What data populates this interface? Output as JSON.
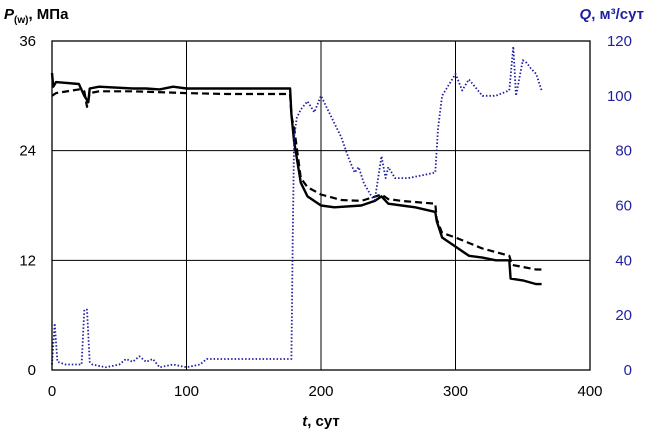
{
  "chart_data": {
    "type": "line",
    "xlabel": {
      "var": "t",
      "unit": ", сут"
    },
    "ylabel_left": {
      "var": "P",
      "sub": "(w)",
      "unit": ", МПа"
    },
    "ylabel_right": {
      "var": "Q",
      "unit": ", м³/сут"
    },
    "x_ticks": [
      "0",
      "100",
      "200",
      "300",
      "400"
    ],
    "y_left_ticks": [
      "0",
      "12",
      "24",
      "36"
    ],
    "y_right_ticks": [
      "0",
      "20",
      "40",
      "60",
      "80",
      "100",
      "120"
    ],
    "xlim": [
      0,
      400
    ],
    "ylim_left": [
      0,
      36
    ],
    "ylim_right": [
      0,
      120
    ],
    "grid": true,
    "colors": {
      "pressure": "#000000",
      "flow": "#1f1f9f",
      "right_axis_text": "#1f1f9f"
    },
    "series": [
      {
        "axis": "left",
        "style": "solid",
        "x": [
          0,
          1,
          3,
          20,
          24,
          27,
          28,
          35,
          60,
          70,
          80,
          90,
          100,
          130,
          160,
          177,
          178,
          180,
          185,
          190,
          200,
          210,
          230,
          240,
          245,
          250,
          260,
          270,
          285,
          286,
          290,
          300,
          310,
          320,
          330,
          340,
          341,
          350,
          360,
          364
        ],
        "y": [
          32.5,
          31,
          31.5,
          31.3,
          30,
          29.3,
          30.8,
          31,
          30.8,
          30.8,
          30.7,
          31,
          30.8,
          30.8,
          30.8,
          30.8,
          28,
          25,
          20.5,
          19,
          18,
          17.8,
          18,
          18.5,
          19,
          18.2,
          18,
          17.8,
          17.3,
          16.3,
          14.5,
          13.5,
          12.5,
          12.3,
          12,
          12,
          10,
          9.8,
          9.4,
          9.4
        ]
      },
      {
        "axis": "left",
        "style": "dashed",
        "x": [
          0,
          3,
          20,
          24,
          26,
          28,
          35,
          60,
          100,
          130,
          160,
          177,
          178,
          180,
          185,
          190,
          200,
          215,
          230,
          245,
          250,
          260,
          285,
          286,
          290,
          300,
          320,
          340,
          342,
          360,
          364
        ],
        "y": [
          30,
          30.3,
          30.7,
          30.5,
          28.8,
          30.3,
          30.5,
          30.5,
          30.3,
          30.2,
          30.2,
          30.2,
          27.8,
          26.5,
          21,
          20,
          19.2,
          18.6,
          18.5,
          19.2,
          18.7,
          18.5,
          18.2,
          16.5,
          15,
          14.5,
          13.3,
          12.5,
          11.5,
          11,
          11
        ]
      },
      {
        "axis": "right",
        "style": "dotted",
        "x": [
          0,
          2,
          4,
          10,
          22,
          24,
          26,
          28,
          30,
          40,
          50,
          55,
          60,
          65,
          70,
          75,
          80,
          90,
          100,
          110,
          115,
          140,
          170,
          178,
          179,
          180,
          182,
          185,
          190,
          195,
          200,
          210,
          215,
          220,
          225,
          228,
          232,
          238,
          240,
          245,
          248,
          250,
          255,
          265,
          285,
          287,
          290,
          300,
          305,
          310,
          320,
          330,
          340,
          343,
          345,
          350,
          353,
          356,
          360,
          364
        ],
        "y": [
          2,
          17,
          3,
          2,
          2,
          22,
          22,
          3,
          2,
          1,
          2,
          4,
          3,
          5,
          3,
          4,
          1,
          2,
          1,
          2,
          4,
          4,
          4,
          4,
          50,
          85,
          92,
          95,
          98,
          94,
          100,
          90,
          85,
          78,
          72,
          74,
          68,
          63,
          62,
          78,
          70,
          74,
          70,
          70,
          72,
          88,
          100,
          108,
          102,
          106,
          100,
          100,
          102,
          118,
          100,
          113,
          112,
          110,
          108,
          102
        ]
      }
    ]
  }
}
